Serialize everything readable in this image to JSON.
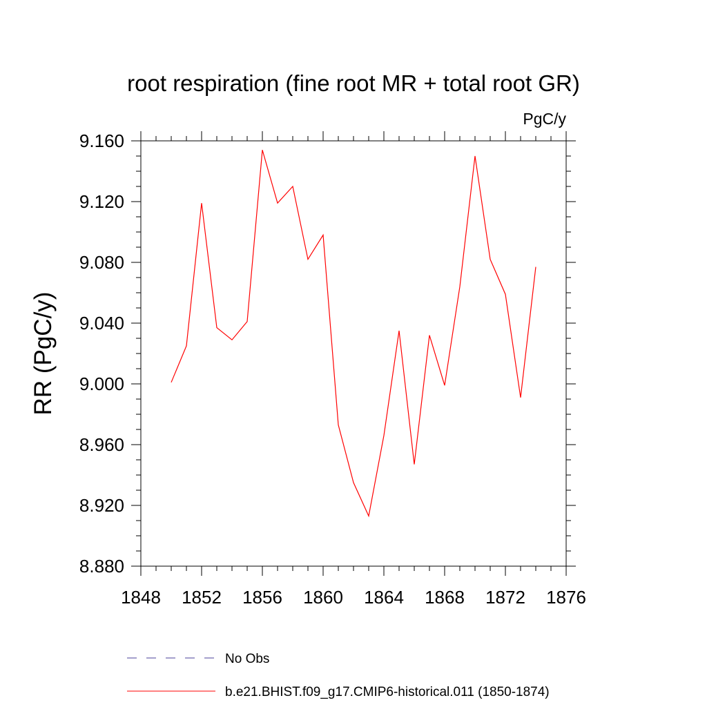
{
  "chart_data": {
    "type": "line",
    "title": "root respiration (fine root MR + total root GR)",
    "units": "PgC/y",
    "ylabel": "RR  (PgC/y)",
    "xlabel": "",
    "xlim": [
      1848,
      1876
    ],
    "ylim": [
      8.88,
      9.16
    ],
    "x_ticks": [
      "1848",
      "1852",
      "1856",
      "1860",
      "1864",
      "1868",
      "1872",
      "1876"
    ],
    "y_ticks": [
      "8.880",
      "8.920",
      "8.960",
      "9.000",
      "9.040",
      "9.080",
      "9.120",
      "9.160"
    ],
    "grid": false,
    "legend_position": "bottom",
    "series": [
      {
        "name": "b.e21.BHIST.f09_g17.CMIP6-historical.011 (1850-1874)",
        "color": "#ff0000",
        "line_style": "solid",
        "x": [
          1850,
          1851,
          1852,
          1853,
          1854,
          1855,
          1856,
          1857,
          1858,
          1859,
          1860,
          1861,
          1862,
          1863,
          1864,
          1865,
          1866,
          1867,
          1868,
          1869,
          1870,
          1871,
          1872,
          1873,
          1874
        ],
        "values": [
          9.001,
          9.025,
          9.119,
          9.037,
          9.029,
          9.041,
          9.154,
          9.119,
          9.13,
          9.082,
          9.098,
          8.973,
          8.935,
          8.913,
          8.966,
          9.035,
          8.947,
          9.032,
          8.999,
          9.064,
          9.15,
          9.082,
          9.059,
          8.991,
          9.077
        ]
      }
    ],
    "legend": [
      {
        "label": "No Obs",
        "color": "#4a3f9a",
        "line_style": "dashed"
      },
      {
        "label": "b.e21.BHIST.f09_g17.CMIP6-historical.011 (1850-1874)",
        "color": "#ff0000",
        "line_style": "solid"
      }
    ]
  }
}
